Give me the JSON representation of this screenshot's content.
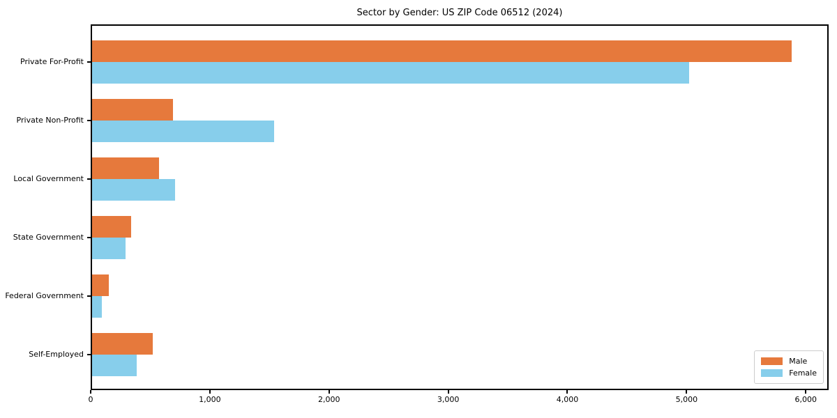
{
  "chart_data": {
    "type": "bar",
    "orientation": "horizontal",
    "title": "Sector by Gender: US ZIP Code 06512 (2024)",
    "categories": [
      "Private For-Profit",
      "Private Non-Profit",
      "Local Government",
      "State Government",
      "Federal Government",
      "Self-Employed"
    ],
    "series": [
      {
        "name": "Male",
        "color": "#e6793c",
        "values": [
          5880,
          680,
          565,
          330,
          140,
          510
        ]
      },
      {
        "name": "Female",
        "color": "#87ceeb",
        "values": [
          5020,
          1530,
          700,
          280,
          80,
          375
        ]
      }
    ],
    "xlabel": "",
    "ylabel": "",
    "xlim": [
      0,
      6180
    ],
    "x_ticks": [
      0,
      1000,
      2000,
      3000,
      4000,
      5000,
      6000
    ],
    "x_tick_labels": [
      "0",
      "1,000",
      "2,000",
      "3,000",
      "4,000",
      "5,000",
      "6,000"
    ],
    "grid": false,
    "legend": {
      "position": "lower-right",
      "entries": [
        "Male",
        "Female"
      ]
    },
    "spine_color": "#000000",
    "background": "#ffffff"
  }
}
